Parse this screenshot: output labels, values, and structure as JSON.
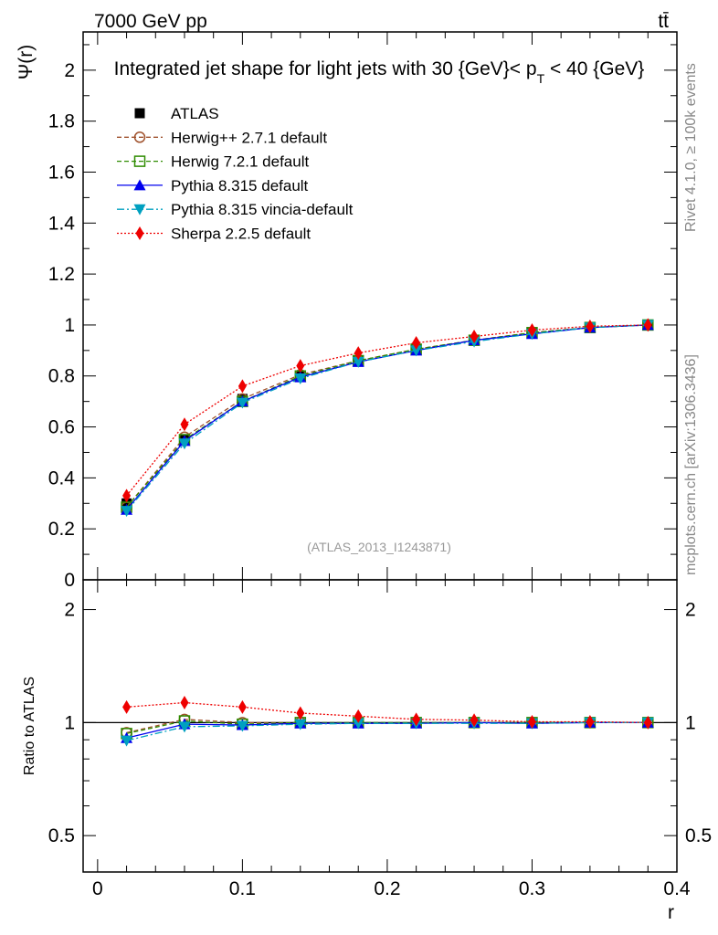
{
  "header": {
    "left": "7000 GeV pp",
    "right": "tt̄"
  },
  "side_labels": {
    "rivet": "Rivet 4.1.0, ≥ 100k events",
    "mcplots": "mcplots.cern.ch [arXiv:1306.3436]"
  },
  "chart_data": {
    "type": "line",
    "title": "Integrated jet shape for light jets with 30 {GeV}< p_T < 40 {GeV}",
    "title_parts": {
      "main": "Integrated jet shape for light jets with 30 {GeV}< p",
      "sub": "T",
      "tail": " < 40 {GeV}"
    },
    "watermark": "(ATLAS_2013_I1243871)",
    "xlabel": "r",
    "ylabel_main": "Ψ(r)",
    "ylabel_ratio": "Ratio to ATLAS",
    "xlim": [
      -0.01,
      0.4
    ],
    "ylim_main": [
      0,
      2.15
    ],
    "ylim_ratio": [
      0.4,
      2.4
    ],
    "x_ticks": [
      "0",
      "0.1",
      "0.2",
      "0.3",
      "0.4"
    ],
    "y_ticks_main": [
      "0",
      "0.2",
      "0.4",
      "0.6",
      "0.8",
      "1",
      "1.2",
      "1.4",
      "1.6",
      "1.8",
      "2"
    ],
    "y_ticks_ratio": [
      "0.5",
      "1",
      "2"
    ],
    "x": [
      0.02,
      0.06,
      0.1,
      0.14,
      0.18,
      0.22,
      0.26,
      0.3,
      0.34,
      0.38
    ],
    "data": {
      "name": "ATLAS",
      "values": [
        0.3,
        0.55,
        0.71,
        0.8,
        0.86,
        0.905,
        0.94,
        0.97,
        0.99,
        1.0
      ]
    },
    "series": [
      {
        "name": "Herwig++ 2.7.1 default",
        "color": "#a0522d",
        "marker": "open-circle",
        "dash": "5,3",
        "values": [
          0.285,
          0.56,
          0.71,
          0.805,
          0.86,
          0.905,
          0.94,
          0.97,
          0.99,
          1.0
        ]
      },
      {
        "name": "Herwig 7.2.1 default",
        "color": "#2e8b00",
        "marker": "open-square",
        "dash": "5,3",
        "values": [
          0.285,
          0.55,
          0.7,
          0.8,
          0.86,
          0.905,
          0.94,
          0.97,
          0.99,
          1.0
        ]
      },
      {
        "name": "Pythia 8.315 default",
        "color": "#0000ee",
        "marker": "triangle-up",
        "dash": "",
        "values": [
          0.275,
          0.545,
          0.7,
          0.795,
          0.855,
          0.9,
          0.94,
          0.965,
          0.99,
          1.0
        ]
      },
      {
        "name": "Pythia 8.315 vincia-default",
        "color": "#00a0c0",
        "marker": "triangle-down",
        "dash": "8,3,2,3",
        "values": [
          0.27,
          0.535,
          0.695,
          0.79,
          0.855,
          0.9,
          0.935,
          0.965,
          0.99,
          1.0
        ]
      },
      {
        "name": "Sherpa 2.2.5 default",
        "color": "#ee0000",
        "marker": "diamond",
        "dash": "2,2",
        "values": [
          0.33,
          0.61,
          0.76,
          0.84,
          0.89,
          0.93,
          0.955,
          0.98,
          0.995,
          1.0
        ]
      }
    ],
    "ratio": {
      "Herwig++ 2.7.1 default": [
        0.94,
        1.02,
        1.0,
        1.0,
        1.0,
        1.0,
        1.0,
        1.0,
        1.0,
        1.0
      ],
      "Herwig 7.2.1 default": [
        0.935,
        1.01,
        0.99,
        1.0,
        1.0,
        1.0,
        1.0,
        1.0,
        1.0,
        1.0
      ],
      "Pythia 8.315 default": [
        0.91,
        0.99,
        0.985,
        0.995,
        0.995,
        0.995,
        1.0,
        0.995,
        1.0,
        1.0
      ],
      "Pythia 8.315 vincia-default": [
        0.895,
        0.975,
        0.98,
        0.99,
        0.995,
        0.995,
        0.995,
        0.995,
        1.0,
        1.0
      ],
      "Sherpa 2.2.5 default": [
        1.1,
        1.13,
        1.1,
        1.06,
        1.04,
        1.02,
        1.015,
        1.005,
        1.005,
        1.0
      ]
    }
  }
}
